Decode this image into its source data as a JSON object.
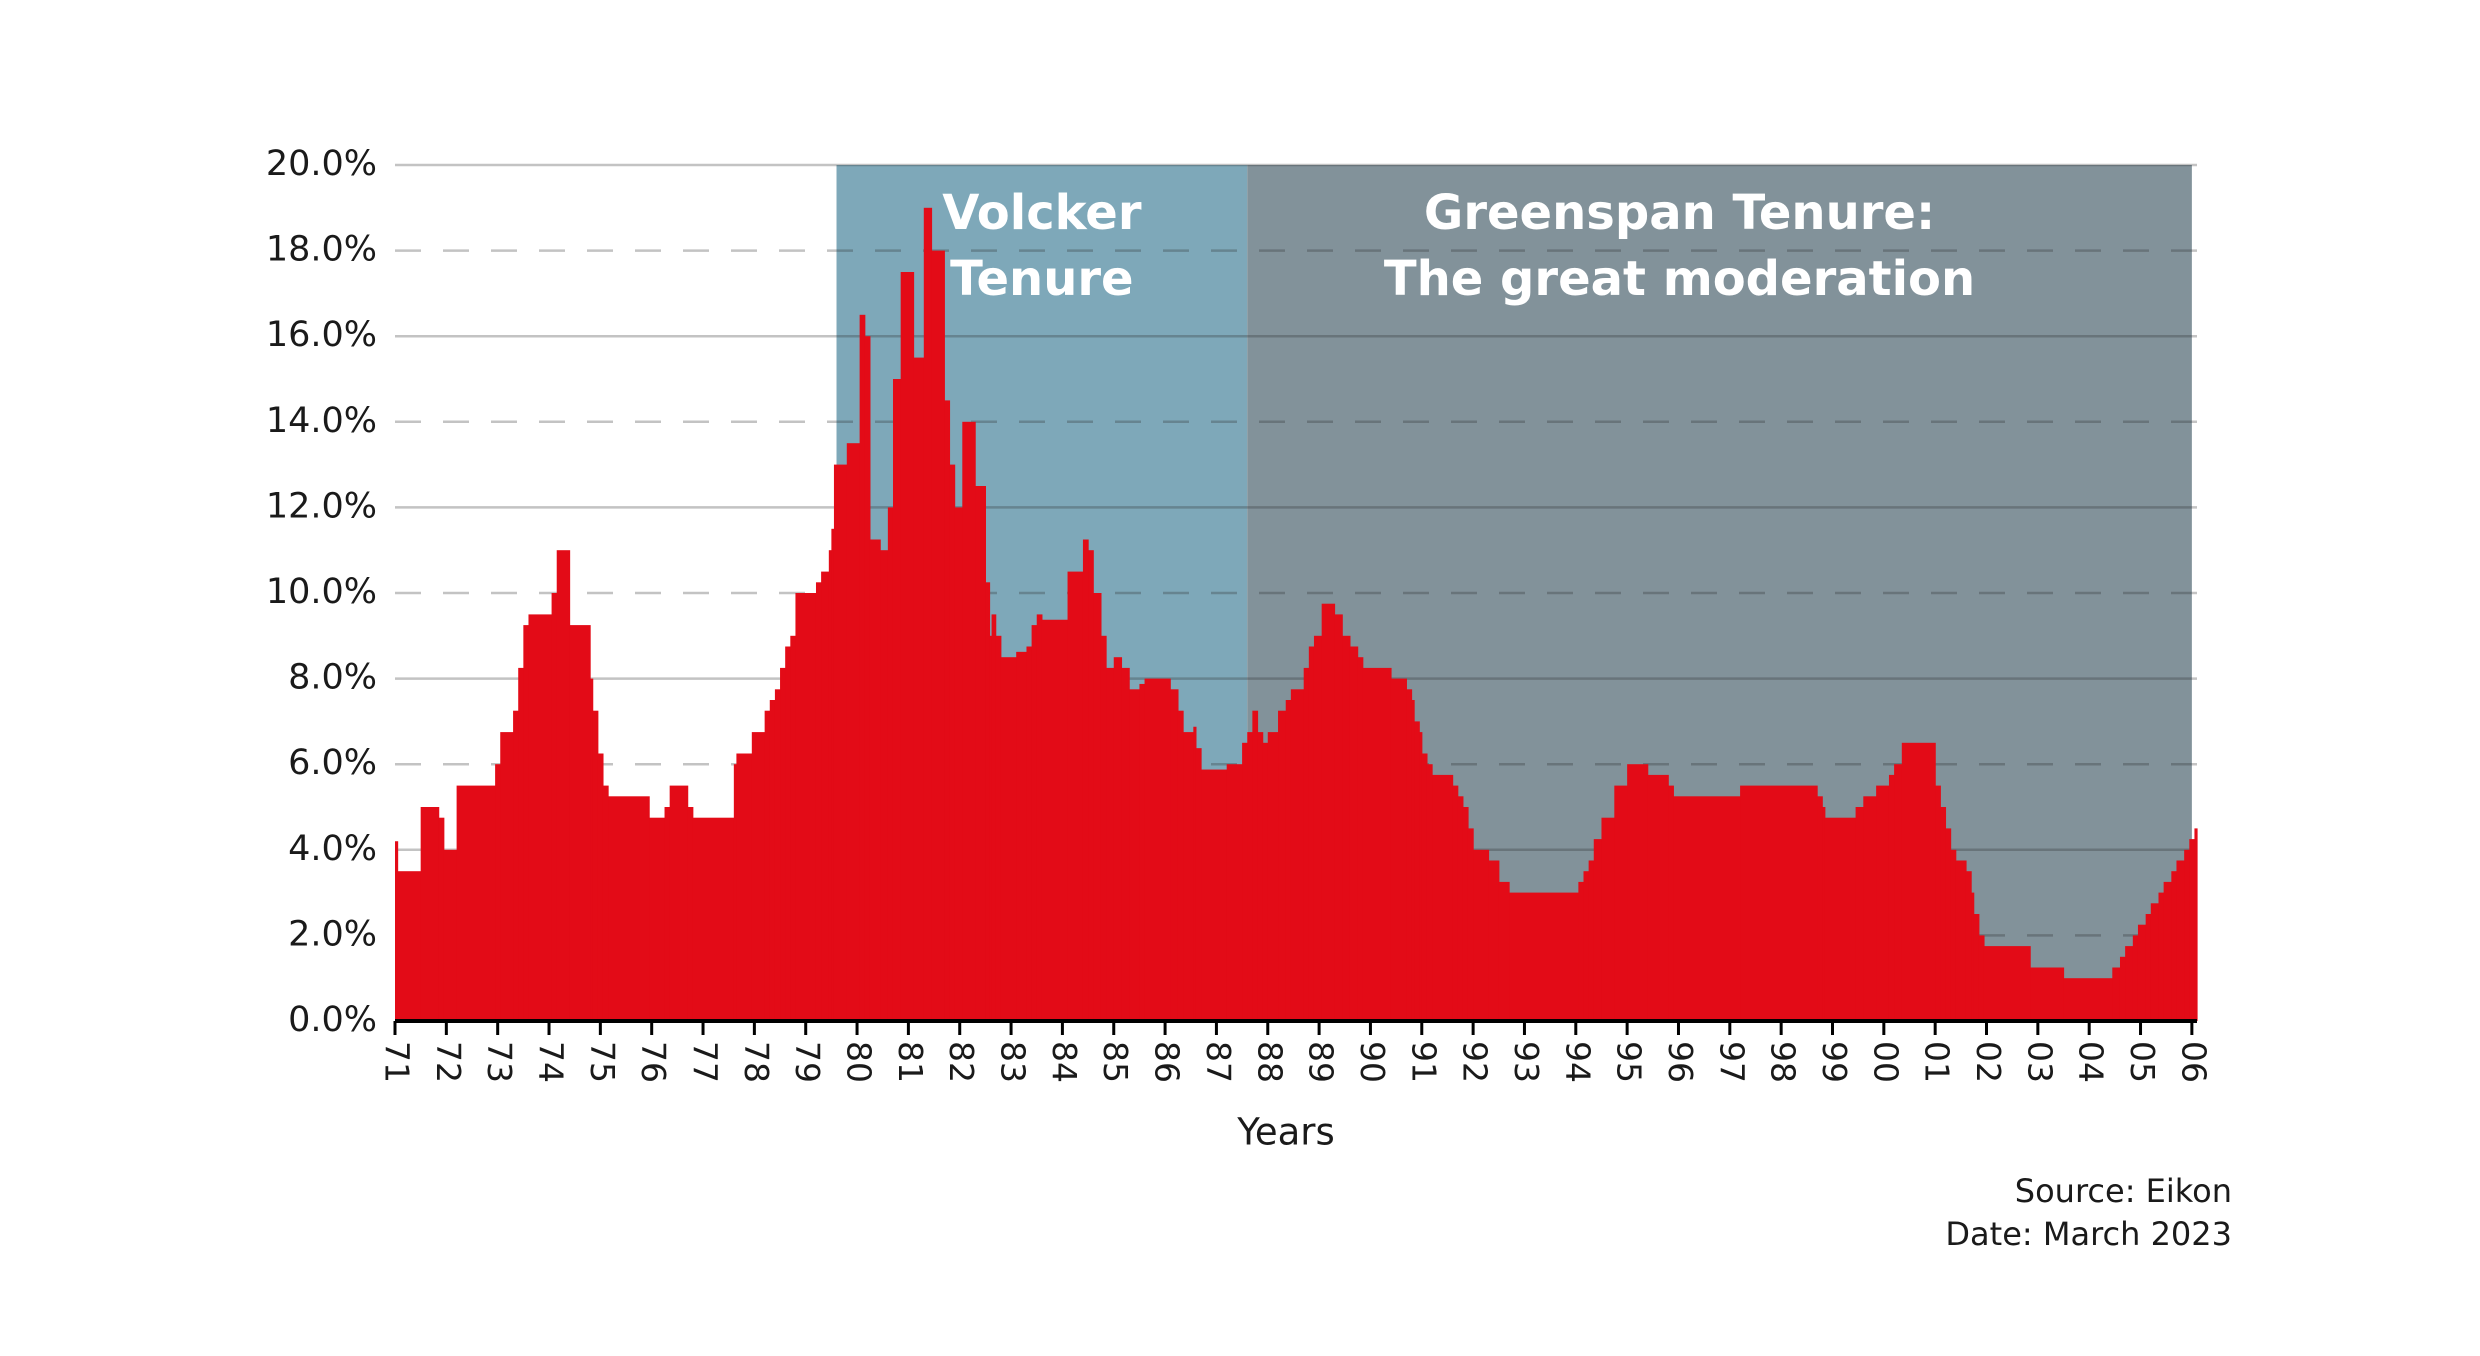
{
  "chart_data": {
    "type": "step-area",
    "x_label": "Years",
    "source_lines": [
      "Source: Eikon",
      "Date: March 2023"
    ],
    "grid": true,
    "xlim": [
      1971,
      2006.1
    ],
    "ylim": [
      0,
      20
    ],
    "yticks": [
      {
        "value": 0,
        "label": "0.0%"
      },
      {
        "value": 2,
        "label": "2.0%"
      },
      {
        "value": 4,
        "label": "4.0%"
      },
      {
        "value": 6,
        "label": "6.0%"
      },
      {
        "value": 8,
        "label": "8.0%"
      },
      {
        "value": 10,
        "label": "10.0%"
      },
      {
        "value": 12,
        "label": "12.0%"
      },
      {
        "value": 14,
        "label": "14.0%"
      },
      {
        "value": 16,
        "label": "16.0%"
      },
      {
        "value": 18,
        "label": "18.0%"
      },
      {
        "value": 20,
        "label": "20.0%"
      }
    ],
    "xticks": [
      {
        "value": 1971,
        "label": "71"
      },
      {
        "value": 1972,
        "label": "72"
      },
      {
        "value": 1973,
        "label": "73"
      },
      {
        "value": 1974,
        "label": "74"
      },
      {
        "value": 1975,
        "label": "75"
      },
      {
        "value": 1976,
        "label": "76"
      },
      {
        "value": 1977,
        "label": "77"
      },
      {
        "value": 1978,
        "label": "78"
      },
      {
        "value": 1979,
        "label": "79"
      },
      {
        "value": 1980,
        "label": "80"
      },
      {
        "value": 1981,
        "label": "81"
      },
      {
        "value": 1982,
        "label": "82"
      },
      {
        "value": 1983,
        "label": "83"
      },
      {
        "value": 1984,
        "label": "84"
      },
      {
        "value": 1985,
        "label": "85"
      },
      {
        "value": 1986,
        "label": "86"
      },
      {
        "value": 1987,
        "label": "87"
      },
      {
        "value": 1988,
        "label": "88"
      },
      {
        "value": 1989,
        "label": "89"
      },
      {
        "value": 1990,
        "label": "90"
      },
      {
        "value": 1991,
        "label": "91"
      },
      {
        "value": 1992,
        "label": "92"
      },
      {
        "value": 1993,
        "label": "93"
      },
      {
        "value": 1994,
        "label": "94"
      },
      {
        "value": 1995,
        "label": "95"
      },
      {
        "value": 1996,
        "label": "96"
      },
      {
        "value": 1997,
        "label": "97"
      },
      {
        "value": 1998,
        "label": "98"
      },
      {
        "value": 1999,
        "label": "99"
      },
      {
        "value": 2000,
        "label": "00"
      },
      {
        "value": 2001,
        "label": "01"
      },
      {
        "value": 2002,
        "label": "02"
      },
      {
        "value": 2003,
        "label": "03"
      },
      {
        "value": 2004,
        "label": "04"
      },
      {
        "value": 2005,
        "label": "05"
      },
      {
        "value": 2006,
        "label": "06"
      }
    ],
    "regions": [
      {
        "start": 1979.6,
        "end": 1987.6,
        "color": "#7ea8b9",
        "label_lines": [
          "Volcker",
          "Tenure"
        ]
      },
      {
        "start": 1987.6,
        "end": 2006,
        "color": "#82929a",
        "label_lines": [
          "Greenspan Tenure:",
          "The great moderation"
        ]
      }
    ],
    "x": [
      1971.0,
      1971.05,
      1971.5,
      1971.85,
      1971.95,
      1972.2,
      1972.95,
      1973.05,
      1973.3,
      1973.4,
      1973.5,
      1973.6,
      1974.05,
      1974.15,
      1974.4,
      1974.8,
      1974.85,
      1974.95,
      1975.05,
      1975.15,
      1975.95,
      1976.25,
      1976.35,
      1976.7,
      1976.8,
      1977.6,
      1977.65,
      1977.95,
      1978.2,
      1978.3,
      1978.4,
      1978.5,
      1978.6,
      1978.7,
      1978.8,
      1979.2,
      1979.3,
      1979.45,
      1979.5,
      1979.55,
      1979.8,
      1980.05,
      1980.15,
      1980.25,
      1980.45,
      1980.6,
      1980.7,
      1980.85,
      1981.1,
      1981.3,
      1981.45,
      1981.7,
      1981.8,
      1981.9,
      1982.05,
      1982.3,
      1982.5,
      1982.58,
      1982.62,
      1982.7,
      1982.8,
      1983.1,
      1983.3,
      1983.4,
      1983.5,
      1983.6,
      1984.1,
      1984.4,
      1984.5,
      1984.6,
      1984.75,
      1984.85,
      1985.0,
      1985.15,
      1985.3,
      1985.5,
      1985.6,
      1986.1,
      1986.25,
      1986.35,
      1986.55,
      1986.6,
      1986.7,
      1987.2,
      1987.5,
      1987.6,
      1987.7,
      1987.8,
      1987.9,
      1988.0,
      1988.2,
      1988.35,
      1988.45,
      1988.7,
      1988.8,
      1988.9,
      1989.05,
      1989.3,
      1989.45,
      1989.6,
      1989.75,
      1989.85,
      1990.4,
      1990.7,
      1990.8,
      1990.85,
      1990.95,
      1991.0,
      1991.1,
      1991.2,
      1991.6,
      1991.7,
      1991.8,
      1991.9,
      1992.0,
      1992.3,
      1992.5,
      1992.7,
      1994.05,
      1994.15,
      1994.25,
      1994.35,
      1994.5,
      1994.75,
      1995.0,
      1995.4,
      1995.8,
      1995.9,
      1997.2,
      1998.7,
      1998.8,
      1998.85,
      1999.45,
      1999.6,
      1999.85,
      2000.1,
      2000.2,
      2000.35,
      2001.0,
      2001.1,
      2001.2,
      2001.3,
      2001.4,
      2001.6,
      2001.7,
      2001.75,
      2001.85,
      2001.95,
      2002.85,
      2003.5,
      2004.45,
      2004.6,
      2004.7,
      2004.85,
      2004.95,
      2005.1,
      2005.2,
      2005.35,
      2005.45,
      2005.6,
      2005.7,
      2005.85,
      2005.95,
      2006.05
    ],
    "series": [
      {
        "color": "#e30b17",
        "values": [
          4.2,
          3.5,
          5.0,
          4.75,
          4.0,
          5.5,
          6.0,
          6.75,
          7.25,
          8.25,
          9.25,
          9.5,
          10.0,
          11.0,
          9.25,
          8.0,
          7.25,
          6.25,
          5.5,
          5.25,
          4.75,
          5.0,
          5.5,
          5.0,
          4.75,
          6.0,
          6.25,
          6.75,
          7.25,
          7.5,
          7.75,
          8.25,
          8.75,
          9.0,
          10.0,
          10.25,
          10.5,
          11.0,
          11.5,
          13.0,
          13.5,
          16.5,
          16.0,
          11.25,
          11.0,
          12.0,
          15.0,
          17.5,
          15.5,
          19.0,
          18.0,
          14.5,
          13.0,
          12.0,
          14.0,
          12.5,
          10.25,
          9.0,
          9.5,
          9.0,
          8.5,
          8.625,
          8.75,
          9.25,
          9.5,
          9.375,
          10.5,
          11.25,
          11.0,
          10.0,
          9.0,
          8.25,
          8.5,
          8.25,
          7.75,
          7.875,
          8.0,
          7.75,
          7.25,
          6.75,
          6.875,
          6.375,
          5.875,
          6.0,
          6.5,
          6.75,
          7.25,
          6.75,
          6.5,
          6.75,
          7.25,
          7.5,
          7.75,
          8.25,
          8.75,
          9.0,
          9.75,
          9.5,
          9.0,
          8.75,
          8.5,
          8.25,
          8.0,
          7.75,
          7.5,
          7.0,
          6.75,
          6.25,
          6.0,
          5.75,
          5.5,
          5.25,
          5.0,
          4.5,
          4.0,
          3.75,
          3.25,
          3.0,
          3.25,
          3.5,
          3.75,
          4.25,
          4.75,
          5.5,
          6.0,
          5.75,
          5.5,
          5.25,
          5.5,
          5.25,
          5.0,
          4.75,
          5.0,
          5.25,
          5.5,
          5.75,
          6.0,
          6.5,
          5.5,
          5.0,
          4.5,
          4.0,
          3.75,
          3.5,
          3.0,
          2.5,
          2.0,
          1.75,
          1.25,
          1.0,
          1.25,
          1.5,
          1.75,
          2.0,
          2.25,
          2.5,
          2.75,
          3.0,
          3.25,
          3.5,
          3.75,
          4.0,
          4.25,
          4.5
        ]
      }
    ]
  }
}
